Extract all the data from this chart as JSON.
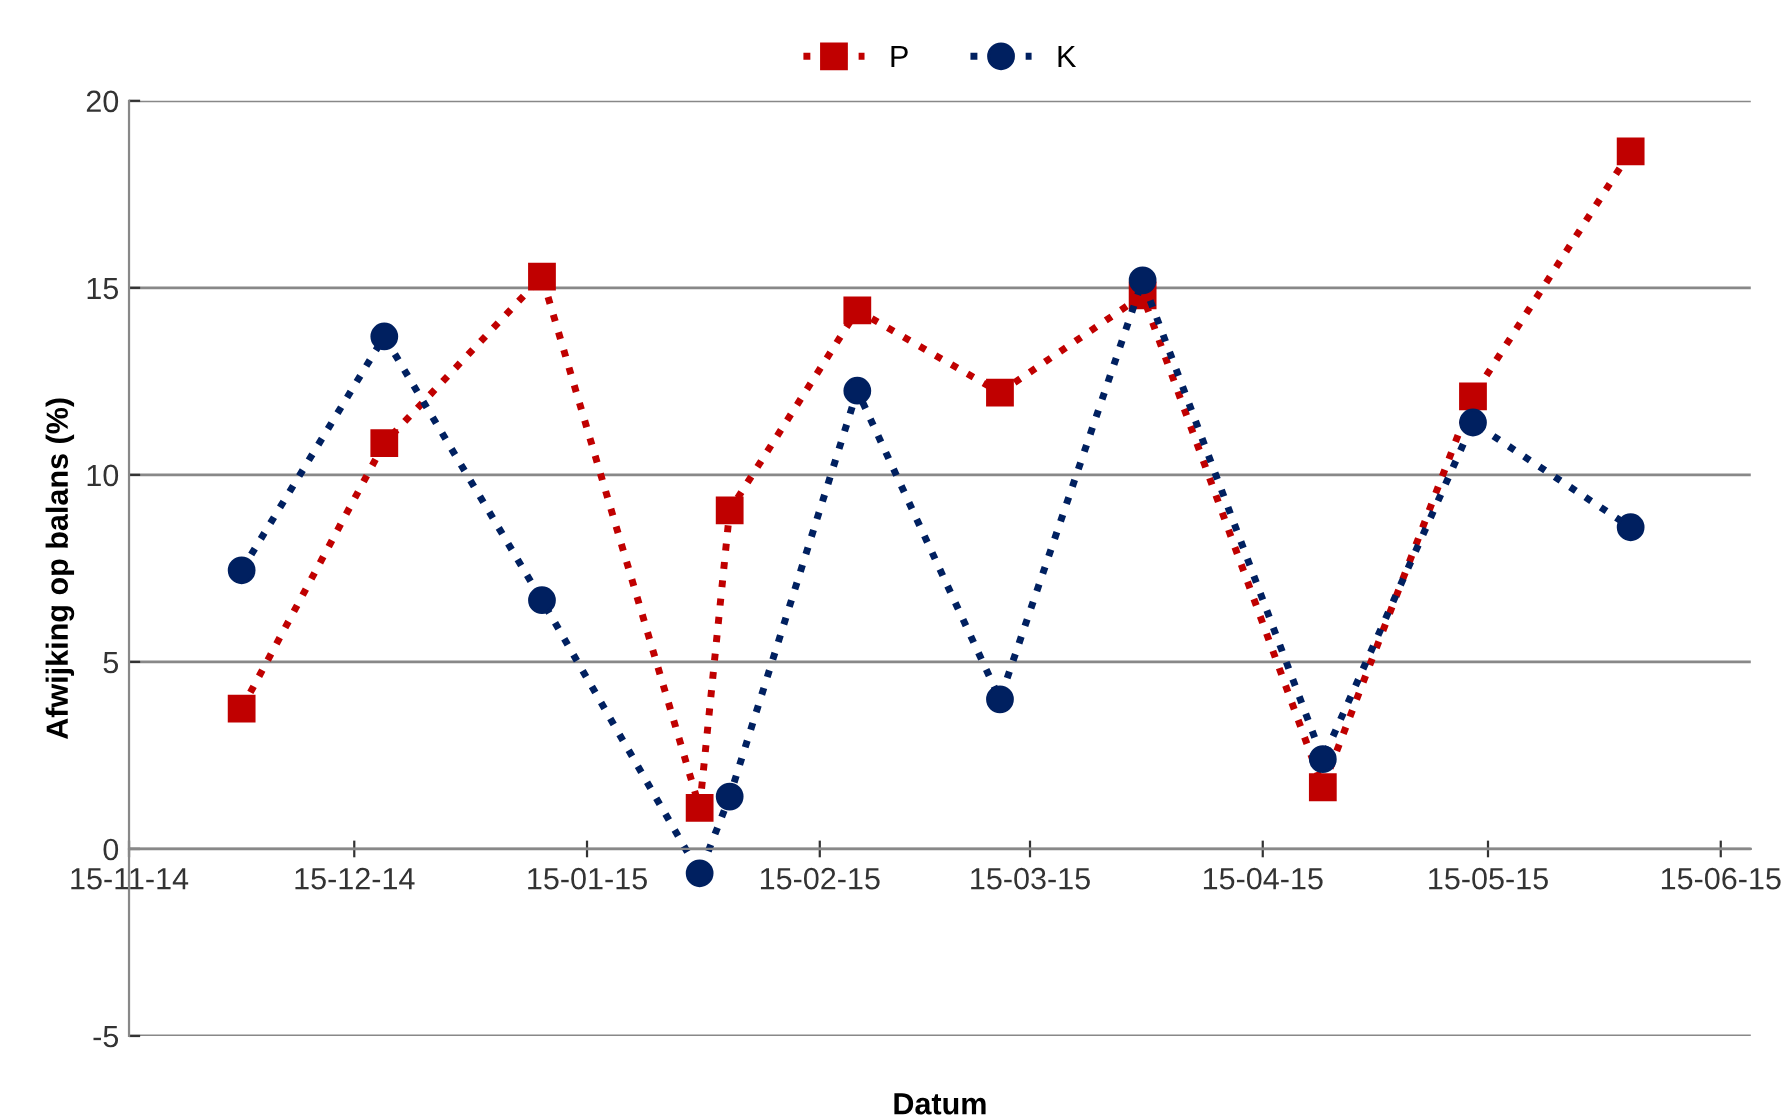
{
  "chart_data": {
    "type": "line",
    "xlabel": "Datum",
    "ylabel": "Afwijking op balans (%)",
    "x": [
      "2014-11-30",
      "2014-12-19",
      "2015-01-09",
      "2015-01-30",
      "2015-02-03",
      "2015-02-20",
      "2015-03-11",
      "2015-03-30",
      "2015-04-23",
      "2015-05-13",
      "2015-06-03"
    ],
    "series": [
      {
        "name": "P",
        "color": "#c00000",
        "marker": "square",
        "values": [
          3.75,
          10.85,
          15.3,
          1.1,
          9.05,
          14.4,
          12.2,
          14.8,
          1.65,
          12.1,
          18.65
        ]
      },
      {
        "name": "K",
        "color": "#002060",
        "marker": "circle",
        "values": [
          7.45,
          13.7,
          6.65,
          -0.65,
          1.4,
          12.25,
          4.0,
          15.2,
          2.4,
          11.4,
          8.6
        ]
      }
    ],
    "xlim": [
      "2014-11-15",
      "2015-06-19"
    ],
    "xticks": [
      {
        "value": "2014-11-15",
        "label": "15-11-14"
      },
      {
        "value": "2014-12-15",
        "label": "15-12-14"
      },
      {
        "value": "2015-01-15",
        "label": "15-01-15"
      },
      {
        "value": "2015-02-15",
        "label": "15-02-15"
      },
      {
        "value": "2015-03-15",
        "label": "15-03-15"
      },
      {
        "value": "2015-04-15",
        "label": "15-04-15"
      },
      {
        "value": "2015-05-15",
        "label": "15-05-15"
      },
      {
        "value": "2015-06-15",
        "label": "15-06-15"
      }
    ],
    "ylim": [
      -5,
      20
    ],
    "yticks": [
      -5,
      0,
      5,
      10,
      15,
      20
    ],
    "grid": "y",
    "legend": "top",
    "line_style": "dotted"
  }
}
